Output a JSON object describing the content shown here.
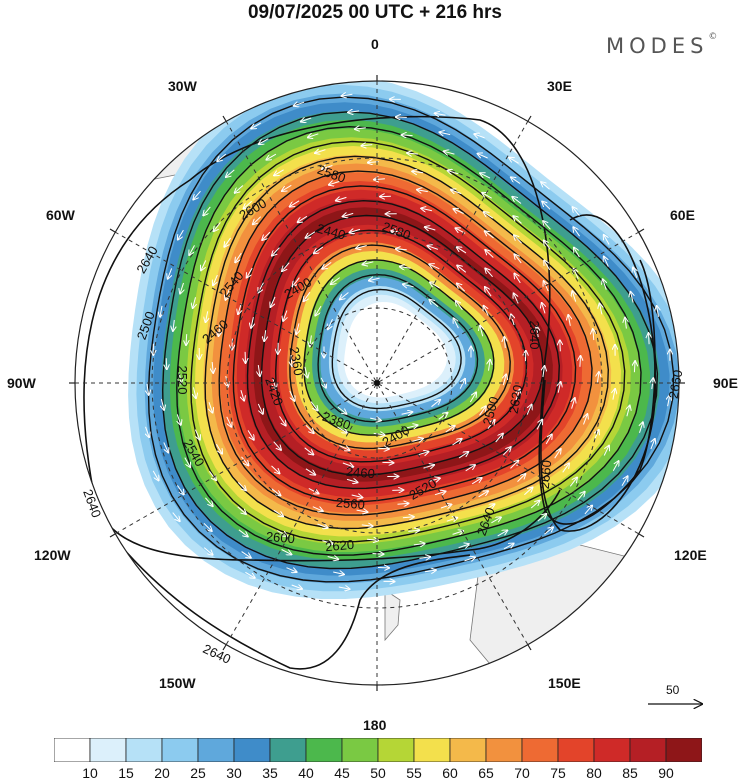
{
  "title": "09/07/2025  00 UTC  + 216 hrs",
  "brand": "MODES",
  "brand_mark": "©",
  "longitude_labels": {
    "top": "0",
    "w30": "30W",
    "e30": "30E",
    "w60": "60W",
    "e60": "60E",
    "w90": "90W",
    "e90": "90E",
    "w120": "120W",
    "e120": "120E",
    "w150": "150W",
    "e150": "150E",
    "bottom": "180"
  },
  "reference_vector": "50",
  "contour_labels": [
    "2580",
    "2600",
    "2640",
    "2440",
    "2540",
    "2500",
    "2460",
    "2400",
    "2520",
    "2360",
    "2420",
    "2380",
    "2400",
    "2460",
    "2540",
    "2560",
    "2620",
    "2600",
    "2640",
    "2660",
    "2640",
    "2520",
    "2500",
    "2620",
    "2640",
    "2580",
    "2640",
    "2660"
  ],
  "colorbar": {
    "ticks": [
      "10",
      "15",
      "20",
      "25",
      "30",
      "35",
      "40",
      "45",
      "50",
      "55",
      "60",
      "65",
      "70",
      "75",
      "80",
      "85",
      "90"
    ],
    "colors": [
      "#ffffff",
      "#dcf0fb",
      "#b6e1f7",
      "#8ccbef",
      "#5fa8dc",
      "#3f8cc9",
      "#3e9e8f",
      "#4cb84c",
      "#7ac943",
      "#b5d636",
      "#f3e04c",
      "#f4b94a",
      "#f2913e",
      "#ee6a33",
      "#e3442a",
      "#cf2a28",
      "#b51f25",
      "#8e1618"
    ]
  }
}
